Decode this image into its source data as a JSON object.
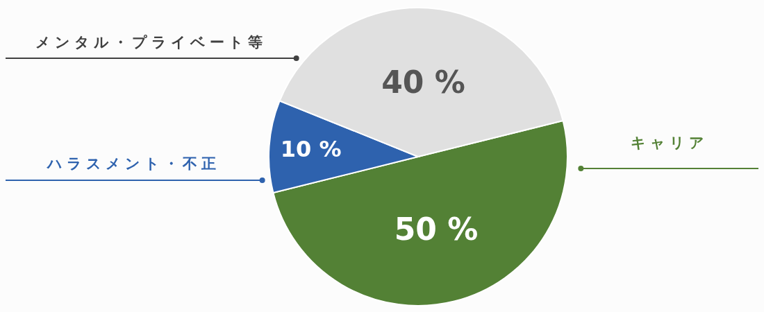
{
  "chart_data": {
    "type": "pie",
    "categories": [
      "キャリア",
      "ハラスメント・不正",
      "メンタル・プライベート等"
    ],
    "values": [
      50,
      10,
      40
    ],
    "colors": [
      "#538135",
      "#2e62ae",
      "#e0e0e0"
    ],
    "value_labels": [
      "50 %",
      "10 %",
      "40 %"
    ]
  }
}
